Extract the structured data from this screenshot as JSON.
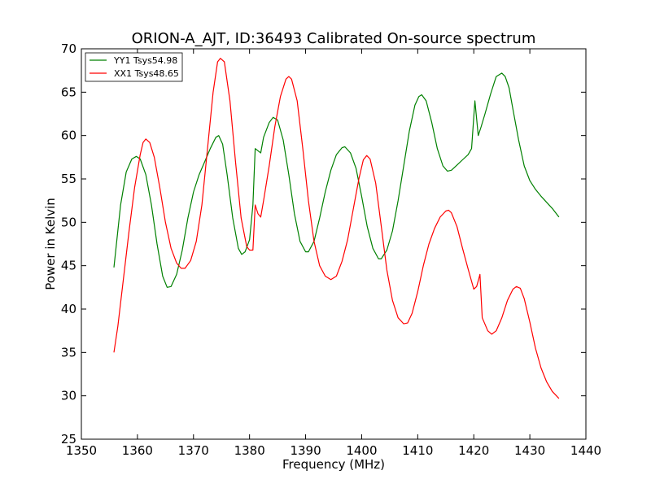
{
  "chart_data": {
    "type": "line",
    "title": "ORION-A_AJT, ID:36493 Calibrated On-source spectrum",
    "xlabel": "Frequency (MHz)",
    "ylabel": "Power in Kelvin",
    "xlim": [
      1350,
      1440
    ],
    "ylim": [
      25,
      70
    ],
    "xticks": [
      1350,
      1360,
      1370,
      1380,
      1390,
      1400,
      1410,
      1420,
      1430,
      1440
    ],
    "yticks": [
      25,
      30,
      35,
      40,
      45,
      50,
      55,
      60,
      65,
      70
    ],
    "grid": false,
    "legend_position": "top-left",
    "series": [
      {
        "name": "YY1 Tsys54.98",
        "color": "#008000",
        "x": [
          1355.8,
          1357.0,
          1358.0,
          1359.0,
          1359.8,
          1360.5,
          1361.5,
          1362.5,
          1363.5,
          1364.5,
          1365.3,
          1366.0,
          1367.0,
          1368.0,
          1369.0,
          1370.0,
          1371.0,
          1372.0,
          1373.0,
          1374.0,
          1374.5,
          1375.2,
          1376.0,
          1377.0,
          1378.0,
          1378.6,
          1379.2,
          1380.0,
          1380.6,
          1381.0,
          1382.0,
          1382.5,
          1383.5,
          1384.2,
          1385.0,
          1386.0,
          1387.0,
          1388.0,
          1389.0,
          1390.0,
          1390.5,
          1391.5,
          1392.5,
          1393.5,
          1394.5,
          1395.5,
          1396.5,
          1397.0,
          1398.0,
          1399.0,
          1400.0,
          1401.0,
          1402.0,
          1403.0,
          1403.5,
          1404.5,
          1405.5,
          1406.5,
          1407.5,
          1408.5,
          1409.5,
          1410.2,
          1410.7,
          1411.5,
          1412.5,
          1413.5,
          1414.5,
          1415.3,
          1416.0,
          1417.0,
          1418.0,
          1419.0,
          1419.6,
          1420.2,
          1420.8,
          1421.3,
          1422.0,
          1423.0,
          1424.0,
          1425.0,
          1425.6,
          1426.3,
          1427.0,
          1428.0,
          1429.0,
          1430.0,
          1431.0,
          1432.0,
          1433.0,
          1434.0,
          1435.2
        ],
        "y": [
          44.8,
          52.0,
          55.8,
          57.3,
          57.6,
          57.3,
          55.5,
          52.0,
          47.5,
          43.8,
          42.5,
          42.6,
          44.0,
          46.8,
          50.5,
          53.5,
          55.5,
          57.0,
          58.5,
          59.8,
          60.0,
          59.0,
          55.5,
          50.5,
          47.0,
          46.3,
          46.6,
          48.0,
          52.0,
          58.5,
          58.0,
          59.8,
          61.5,
          62.1,
          61.8,
          59.5,
          55.5,
          51.0,
          47.8,
          46.6,
          46.6,
          47.8,
          50.5,
          53.5,
          56.0,
          57.8,
          58.6,
          58.7,
          58.0,
          56.2,
          53.0,
          49.5,
          47.0,
          45.8,
          45.8,
          46.8,
          49.0,
          52.5,
          56.5,
          60.5,
          63.5,
          64.5,
          64.7,
          64.0,
          61.5,
          58.5,
          56.5,
          55.9,
          56.0,
          56.6,
          57.2,
          57.8,
          58.5,
          64.0,
          60.0,
          61.0,
          62.5,
          64.8,
          66.8,
          67.2,
          66.8,
          65.5,
          63.0,
          59.5,
          56.5,
          54.8,
          53.8,
          53.0,
          52.3,
          51.6,
          50.6
        ]
      },
      {
        "name": "XX1 Tsys48.65",
        "color": "#ff0000",
        "x": [
          1355.8,
          1356.5,
          1357.5,
          1358.5,
          1359.5,
          1360.5,
          1361.0,
          1361.5,
          1362.2,
          1363.0,
          1364.0,
          1365.0,
          1366.0,
          1367.0,
          1367.8,
          1368.5,
          1369.5,
          1370.5,
          1371.5,
          1372.5,
          1373.5,
          1374.3,
          1374.8,
          1375.5,
          1376.5,
          1377.5,
          1378.5,
          1379.5,
          1380.0,
          1380.6,
          1381.0,
          1381.5,
          1382.0,
          1382.5,
          1383.5,
          1384.5,
          1385.5,
          1386.5,
          1387.0,
          1387.5,
          1388.5,
          1389.5,
          1390.5,
          1391.5,
          1392.5,
          1393.5,
          1394.5,
          1395.5,
          1396.5,
          1397.5,
          1398.5,
          1399.5,
          1400.3,
          1400.9,
          1401.5,
          1402.5,
          1403.5,
          1404.5,
          1405.5,
          1406.5,
          1407.5,
          1408.2,
          1409.0,
          1410.0,
          1411.0,
          1412.0,
          1413.0,
          1414.0,
          1415.0,
          1415.5,
          1416.0,
          1417.0,
          1418.0,
          1419.0,
          1420.0,
          1420.5,
          1420.9,
          1421.1,
          1421.5,
          1422.5,
          1423.2,
          1424.0,
          1425.0,
          1426.0,
          1427.0,
          1427.6,
          1428.3,
          1429.0,
          1430.0,
          1431.0,
          1432.0,
          1433.0,
          1434.0,
          1435.2
        ],
        "y": [
          35.0,
          38.0,
          43.5,
          49.0,
          54.0,
          57.8,
          59.2,
          59.6,
          59.2,
          57.5,
          54.0,
          50.0,
          47.0,
          45.3,
          44.7,
          44.7,
          45.6,
          47.8,
          52.0,
          58.5,
          65.0,
          68.5,
          68.9,
          68.5,
          64.0,
          57.0,
          50.5,
          47.2,
          46.8,
          46.8,
          52.0,
          51.0,
          50.6,
          52.5,
          56.5,
          61.0,
          64.5,
          66.5,
          66.8,
          66.5,
          64.0,
          58.5,
          52.5,
          47.8,
          45.0,
          43.8,
          43.4,
          43.8,
          45.5,
          48.0,
          51.5,
          55.0,
          57.2,
          57.7,
          57.3,
          54.5,
          49.5,
          44.5,
          41.0,
          39.0,
          38.3,
          38.4,
          39.5,
          42.0,
          45.0,
          47.5,
          49.3,
          50.6,
          51.3,
          51.4,
          51.1,
          49.5,
          47.0,
          44.6,
          42.3,
          42.6,
          43.5,
          44.0,
          39.0,
          37.5,
          37.1,
          37.5,
          39.0,
          41.0,
          42.3,
          42.6,
          42.4,
          41.2,
          38.5,
          35.5,
          33.2,
          31.6,
          30.5,
          29.7
        ]
      }
    ]
  }
}
